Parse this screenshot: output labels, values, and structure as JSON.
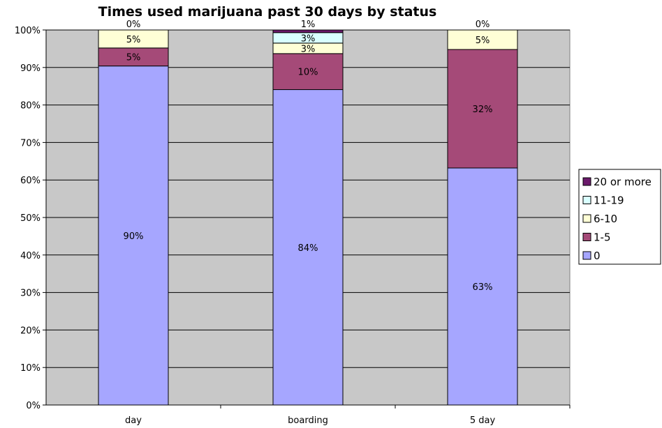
{
  "chart_data": {
    "type": "bar",
    "stacked": true,
    "percent_stacked": true,
    "title": "Times used marijuana past 30 days by status",
    "xlabel": "",
    "ylabel": "",
    "categories": [
      "day",
      "boarding",
      "5 day"
    ],
    "ylim": [
      0,
      100
    ],
    "y_ticks": [
      "0%",
      "10%",
      "20%",
      "30%",
      "40%",
      "50%",
      "60%",
      "70%",
      "80%",
      "90%",
      "100%"
    ],
    "grid": true,
    "legend_position": "right",
    "series": [
      {
        "name": "0",
        "color": "#a6a6ff",
        "values": [
          90.4,
          84.1,
          63.2
        ],
        "labels": [
          "90%",
          "84%",
          "63%"
        ]
      },
      {
        "name": "1-5",
        "color": "#a54a78",
        "values": [
          4.8,
          9.6,
          31.6
        ],
        "labels": [
          "5%",
          "10%",
          "32%"
        ]
      },
      {
        "name": "6-10",
        "color": "#ffffd6",
        "values": [
          4.8,
          2.8,
          5.2
        ],
        "labels": [
          "5%",
          "3%",
          "5%"
        ]
      },
      {
        "name": "11-19",
        "color": "#d9ffff",
        "values": [
          0,
          2.8,
          0
        ],
        "labels": [
          "",
          "3%",
          ""
        ]
      },
      {
        "name": "20 or more",
        "color": "#6b1a6b",
        "values": [
          0,
          0.7,
          0
        ],
        "labels": [
          "0%",
          "1%",
          "0%"
        ]
      }
    ],
    "plot_background": "#c8c8c8"
  }
}
